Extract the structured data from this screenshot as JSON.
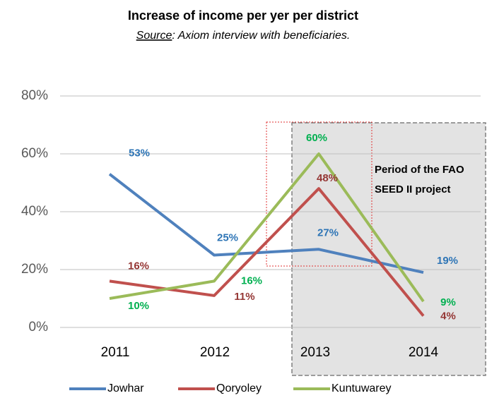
{
  "chart_data": {
    "type": "line",
    "title": "Increase of income per yer per district",
    "subtitle": {
      "label": "Source",
      "text": ": Axiom interview with beneficiaries."
    },
    "annotation": [
      "Period of the FAO",
      "SEED II project"
    ],
    "categories": [
      "2011",
      "2012",
      "2013",
      "2014"
    ],
    "series": [
      {
        "name": "Jowhar",
        "color": "#4f81bd",
        "label_color": "#2e75b6",
        "values": [
          53,
          25,
          27,
          19
        ],
        "value_labels": [
          "53%",
          "25%",
          "27%",
          "19%"
        ]
      },
      {
        "name": "Qoryoley",
        "color": "#c0504d",
        "label_color": "#953735",
        "values": [
          16,
          11,
          48,
          4
        ],
        "value_labels": [
          "16%",
          "11%",
          "48%",
          "4%"
        ]
      },
      {
        "name": "Kuntuwarey",
        "color": "#9bbb59",
        "label_color": "#00b050",
        "values": [
          10,
          16,
          60,
          9
        ],
        "value_labels": [
          "10%",
          "16%",
          "60%",
          "9%"
        ]
      }
    ],
    "ylim": [
      0,
      80
    ],
    "yticks": [
      {
        "value": 0,
        "label": "0%"
      },
      {
        "value": 20,
        "label": "20%"
      },
      {
        "value": 40,
        "label": "40%"
      },
      {
        "value": 60,
        "label": "60%"
      },
      {
        "value": 80,
        "label": "80%"
      }
    ],
    "grid": true,
    "legend": "bottom"
  }
}
